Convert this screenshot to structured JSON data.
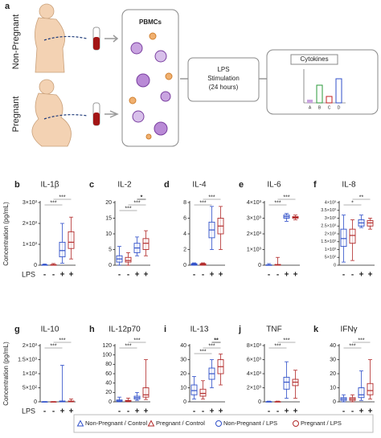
{
  "diagram": {
    "letter": "a",
    "group_top": "Non-Pregnant",
    "group_bottom": "Pregnant",
    "cells_title": "PBMCs",
    "stim_lines": [
      "LPS",
      "Stimulation",
      "(24 hours)"
    ],
    "result_title": "Cytokines",
    "result_groups": [
      "A",
      "B",
      "C",
      "D"
    ]
  },
  "lps_label": "LPS",
  "lps_signs": [
    "-",
    "-",
    "+",
    "+"
  ],
  "groups": [
    {
      "name": "Non-Pregnant / Control",
      "color": "#2f4fc9",
      "marker": "triangle"
    },
    {
      "name": "Pregnant / Control",
      "color": "#b22a2a",
      "marker": "triangle"
    },
    {
      "name": "Non-Pregnant / LPS",
      "color": "#2f4fc9",
      "marker": "circle"
    },
    {
      "name": "Pregnant / LPS",
      "color": "#b22a2a",
      "marker": "circle"
    }
  ],
  "chart_data": [
    {
      "type": "box",
      "letter": "b",
      "title": "IL-1β",
      "y_label": "Concentration (pg/mL)",
      "ylim": [
        0,
        3000
      ],
      "yticks": [
        0,
        {
          "value": 1000,
          "label": "1×10³"
        },
        {
          "value": 2000,
          "label": "2×10³"
        },
        {
          "value": 3000,
          "label": "3×10³"
        }
      ],
      "boxes": [
        [
          0,
          0,
          10,
          20,
          60
        ],
        [
          0,
          0,
          10,
          30,
          80
        ],
        [
          100,
          400,
          700,
          1100,
          2000
        ],
        [
          300,
          800,
          1100,
          1600,
          2300
        ]
      ],
      "annotations": [
        "***",
        "***"
      ]
    },
    {
      "type": "box",
      "letter": "c",
      "title": "IL-2",
      "ylim": [
        0,
        20
      ],
      "yticks": [
        0,
        5,
        10,
        15,
        20
      ],
      "boxes": [
        [
          0,
          1,
          2,
          3,
          6
        ],
        [
          0,
          1,
          1.5,
          2.5,
          4
        ],
        [
          3,
          4,
          5.5,
          7,
          9
        ],
        [
          3,
          5,
          7,
          8.5,
          11
        ]
      ],
      "annotations": [
        "*",
        "***",
        "***"
      ]
    },
    {
      "type": "box",
      "letter": "d",
      "title": "IL-4",
      "ylim": [
        0,
        8
      ],
      "yticks": [
        0,
        2,
        4,
        6,
        8
      ],
      "boxes": [
        [
          0,
          0,
          0.1,
          0.2,
          0.3
        ],
        [
          0,
          0,
          0.1,
          0.2,
          0.3
        ],
        [
          2,
          3.5,
          4.5,
          5.5,
          7.5
        ],
        [
          2,
          4,
          5,
          6,
          7.5
        ]
      ],
      "annotations": [
        "***",
        "***"
      ]
    },
    {
      "type": "box",
      "letter": "e",
      "title": "IL-6",
      "ylim": [
        0,
        4000
      ],
      "yticks": [
        0,
        {
          "value": 1000,
          "label": "1×10³"
        },
        {
          "value": 2000,
          "label": "2×10³"
        },
        {
          "value": 3000,
          "label": "3×10³"
        },
        {
          "value": 4000,
          "label": "4×10³"
        }
      ],
      "boxes": [
        [
          0,
          0,
          5,
          20,
          100
        ],
        [
          0,
          0,
          10,
          50,
          500
        ],
        [
          2800,
          3000,
          3100,
          3200,
          3300
        ],
        [
          2900,
          3000,
          3050,
          3100,
          3200
        ]
      ],
      "annotations": [
        "***",
        "***"
      ]
    },
    {
      "type": "box",
      "letter": "f",
      "title": "IL-8",
      "ylim": [
        0,
        4000
      ],
      "yticks": [
        0,
        {
          "value": 500,
          "label": "5×10²"
        },
        {
          "value": 1000,
          "label": "1×10³"
        },
        {
          "value": 1500,
          "label": "1.5×10³"
        },
        {
          "value": 2000,
          "label": "2×10³"
        },
        {
          "value": 2500,
          "label": "2.5×10³"
        },
        {
          "value": 3000,
          "label": "3×10³"
        },
        {
          "value": 3500,
          "label": "3.5×10³"
        },
        {
          "value": 4000,
          "label": "4×10³"
        }
      ],
      "boxes": [
        [
          200,
          1200,
          1700,
          2300,
          3200
        ],
        [
          300,
          1400,
          1900,
          2300,
          2900
        ],
        [
          2400,
          2500,
          2700,
          2900,
          3200
        ],
        [
          2300,
          2500,
          2700,
          2850,
          3000
        ]
      ],
      "annotations": [
        "**",
        "*"
      ]
    },
    {
      "type": "box",
      "letter": "g",
      "title": "IL-10",
      "y_label": "Concentration (pg/mL)",
      "ylim": [
        0,
        2000
      ],
      "yticks": [
        0,
        {
          "value": 500,
          "label": "5×10²"
        },
        {
          "value": 1000,
          "label": "1×10³"
        },
        {
          "value": 1500,
          "label": "1.5×10³"
        },
        {
          "value": 2000,
          "label": "2×10³"
        }
      ],
      "boxes": [
        [
          0,
          0,
          0,
          5,
          10
        ],
        [
          0,
          0,
          0,
          5,
          10
        ],
        [
          0,
          5,
          10,
          30,
          1300
        ],
        [
          0,
          5,
          15,
          30,
          100
        ]
      ],
      "annotations": [
        "***",
        "***"
      ]
    },
    {
      "type": "box",
      "letter": "h",
      "title": "IL-12p70",
      "ylim": [
        0,
        120
      ],
      "yticks": [
        0,
        20,
        40,
        60,
        80,
        100,
        120
      ],
      "boxes": [
        [
          0,
          1,
          2,
          4,
          10
        ],
        [
          0,
          1,
          2,
          3,
          8
        ],
        [
          3,
          6,
          9,
          12,
          20
        ],
        [
          5,
          10,
          15,
          30,
          90
        ]
      ],
      "annotations": [
        "***",
        "***"
      ]
    },
    {
      "type": "box",
      "letter": "i",
      "title": "IL-13",
      "ylim": [
        0,
        40
      ],
      "yticks": [
        0,
        10,
        20,
        30,
        40
      ],
      "boxes": [
        [
          2,
          5,
          8,
          12,
          18
        ],
        [
          2,
          4,
          6,
          9,
          15
        ],
        [
          10,
          16,
          20,
          24,
          30
        ],
        [
          12,
          20,
          25,
          30,
          34
        ]
      ],
      "annotations": [
        "**",
        "***",
        "***"
      ]
    },
    {
      "type": "box",
      "letter": "j",
      "title": "TNF",
      "ylim": [
        0,
        8000
      ],
      "yticks": [
        0,
        {
          "value": 2000,
          "label": "2×10³"
        },
        {
          "value": 4000,
          "label": "4×10³"
        },
        {
          "value": 6000,
          "label": "6×10³"
        },
        {
          "value": 8000,
          "label": "8×10³"
        }
      ],
      "boxes": [
        [
          0,
          0,
          10,
          30,
          100
        ],
        [
          0,
          0,
          10,
          30,
          100
        ],
        [
          500,
          1800,
          2800,
          3500,
          5700
        ],
        [
          500,
          2300,
          2800,
          3200,
          4500
        ]
      ],
      "annotations": [
        "***",
        "***"
      ]
    },
    {
      "type": "box",
      "letter": "k",
      "title": "IFNγ",
      "ylim": [
        0,
        40
      ],
      "yticks": [
        0,
        10,
        20,
        30,
        40
      ],
      "boxes": [
        [
          0,
          1,
          2,
          3,
          5
        ],
        [
          0,
          1,
          2,
          3,
          5
        ],
        [
          1,
          3,
          5,
          10,
          22
        ],
        [
          2,
          5,
          8,
          13,
          30
        ]
      ],
      "annotations": [
        "***",
        "***"
      ]
    }
  ]
}
